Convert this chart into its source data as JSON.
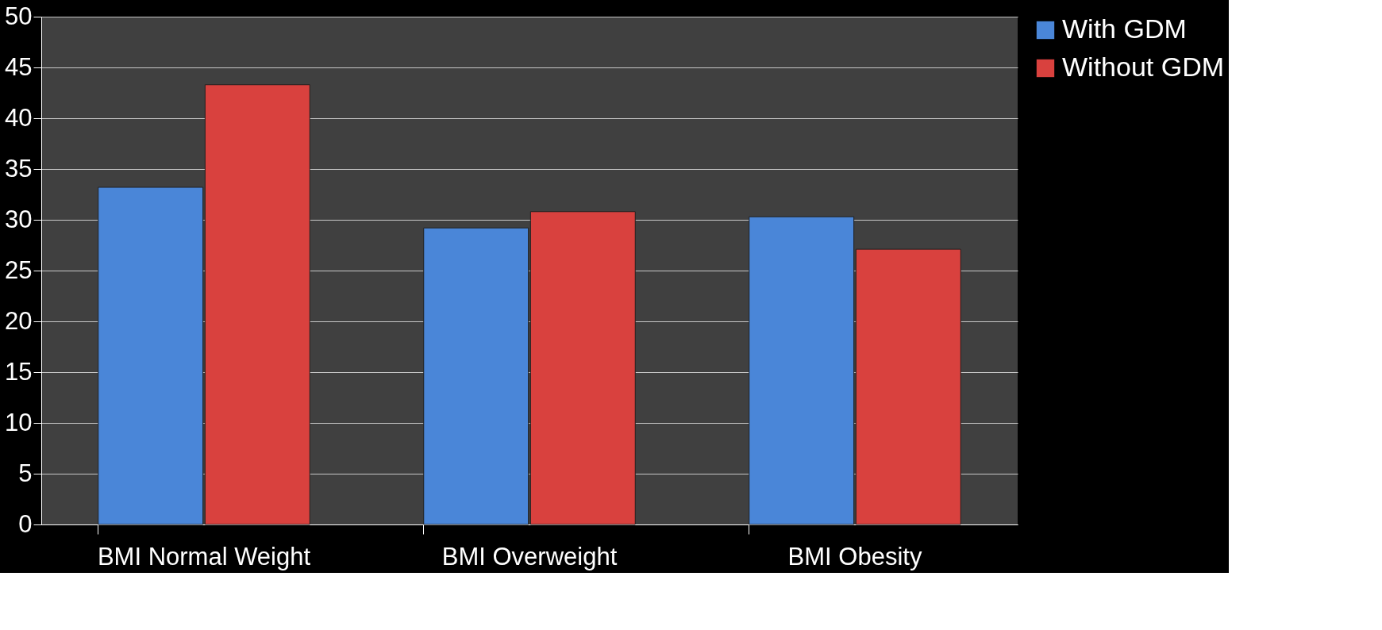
{
  "chart_data": {
    "type": "bar",
    "categories": [
      "BMI Normal Weight",
      "BMI Overweight",
      "BMI Obesity"
    ],
    "series": [
      {
        "name": "With GDM",
        "color": "#4a86d8",
        "values": [
          33.2,
          29.2,
          30.3
        ]
      },
      {
        "name": "Without GDM",
        "color": "#d9413e",
        "values": [
          43.3,
          30.8,
          27.1
        ]
      }
    ],
    "ylim": [
      0,
      50
    ],
    "yticks": [
      0,
      5,
      10,
      15,
      20,
      25,
      30,
      35,
      40,
      45,
      50
    ],
    "grid": "y",
    "legend": "right"
  }
}
